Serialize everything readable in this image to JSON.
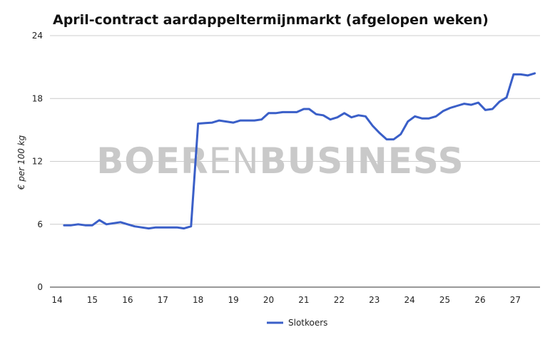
{
  "chart_data": {
    "type": "line",
    "title": "April-contract aardappeltermijnmarkt (afgelopen weken)",
    "ylabel": "€ per 100 kg",
    "xlabel": "",
    "xlim": [
      14,
      27.7
    ],
    "ylim": [
      0,
      24
    ],
    "x_ticks": [
      "14",
      "15",
      "16",
      "17",
      "18",
      "19",
      "20",
      "21",
      "22",
      "23",
      "24",
      "25",
      "26",
      "27"
    ],
    "y_ticks": [
      "0",
      "6",
      "12",
      "18",
      "24"
    ],
    "grid": true,
    "legend_position": "bottom",
    "colors": {
      "line": "#3a5fc8",
      "grid": "#cccccc"
    },
    "series": [
      {
        "name": "Slotkoers",
        "points": [
          [
            14.2,
            5.9
          ],
          [
            14.4,
            5.9
          ],
          [
            14.6,
            6.0
          ],
          [
            14.8,
            5.9
          ],
          [
            15.0,
            5.9
          ],
          [
            15.2,
            6.4
          ],
          [
            15.4,
            6.0
          ],
          [
            15.6,
            6.1
          ],
          [
            15.8,
            6.2
          ],
          [
            16.0,
            6.0
          ],
          [
            16.2,
            5.8
          ],
          [
            16.4,
            5.7
          ],
          [
            16.6,
            5.6
          ],
          [
            16.8,
            5.7
          ],
          [
            17.0,
            5.7
          ],
          [
            17.2,
            5.7
          ],
          [
            17.4,
            5.7
          ],
          [
            17.6,
            5.6
          ],
          [
            17.8,
            5.8
          ],
          [
            18.0,
            15.6
          ],
          [
            18.2,
            15.65
          ],
          [
            18.4,
            15.7
          ],
          [
            18.6,
            15.9
          ],
          [
            18.8,
            15.8
          ],
          [
            19.0,
            15.7
          ],
          [
            19.2,
            15.9
          ],
          [
            19.4,
            15.9
          ],
          [
            19.6,
            15.9
          ],
          [
            19.8,
            16.0
          ],
          [
            20.0,
            16.6
          ],
          [
            20.2,
            16.6
          ],
          [
            20.4,
            16.7
          ],
          [
            20.6,
            16.7
          ],
          [
            20.8,
            16.7
          ],
          [
            21.0,
            17.0
          ],
          [
            21.15,
            17.0
          ],
          [
            21.35,
            16.5
          ],
          [
            21.55,
            16.4
          ],
          [
            21.75,
            16.0
          ],
          [
            21.95,
            16.2
          ],
          [
            22.15,
            16.6
          ],
          [
            22.35,
            16.2
          ],
          [
            22.55,
            16.4
          ],
          [
            22.75,
            16.3
          ],
          [
            22.95,
            15.4
          ],
          [
            23.15,
            14.7
          ],
          [
            23.35,
            14.1
          ],
          [
            23.55,
            14.1
          ],
          [
            23.75,
            14.6
          ],
          [
            23.95,
            15.8
          ],
          [
            24.15,
            16.3
          ],
          [
            24.35,
            16.1
          ],
          [
            24.55,
            16.1
          ],
          [
            24.75,
            16.3
          ],
          [
            24.95,
            16.8
          ],
          [
            25.15,
            17.1
          ],
          [
            25.35,
            17.3
          ],
          [
            25.55,
            17.5
          ],
          [
            25.75,
            17.4
          ],
          [
            25.95,
            17.6
          ],
          [
            26.15,
            16.9
          ],
          [
            26.35,
            17.0
          ],
          [
            26.55,
            17.7
          ],
          [
            26.75,
            18.1
          ],
          [
            26.95,
            20.3
          ],
          [
            27.15,
            20.3
          ],
          [
            27.35,
            20.2
          ],
          [
            27.55,
            20.4
          ]
        ]
      }
    ]
  },
  "watermark": {
    "part1": "BOER",
    "part2": "EN",
    "part3": "BUSINESS"
  }
}
